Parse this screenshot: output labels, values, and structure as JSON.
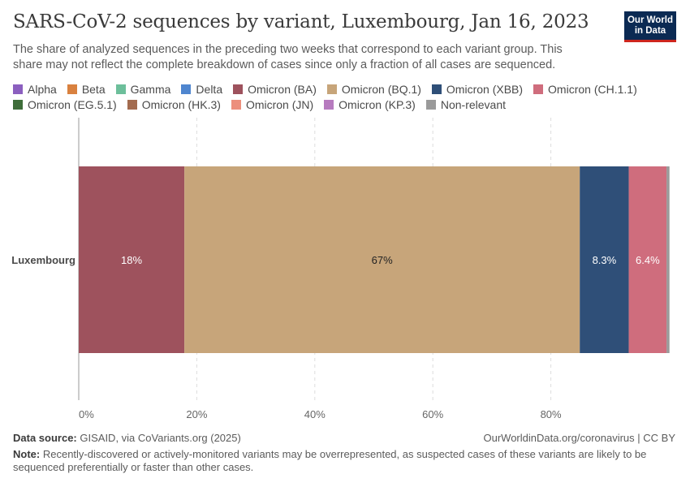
{
  "header": {
    "title": "SARS-CoV-2 sequences by variant, Luxembourg, Jan 16, 2023",
    "subtitle": "The share of analyzed sequences in the preceding two weeks that correspond to each variant group. This share may not reflect the complete breakdown of cases since only a fraction of all cases are sequenced.",
    "logo_line1": "Our World",
    "logo_line2": "in Data"
  },
  "legend": [
    {
      "label": "Alpha",
      "color": "#8b5fbf"
    },
    {
      "label": "Beta",
      "color": "#d9813f"
    },
    {
      "label": "Gamma",
      "color": "#6dbf9b"
    },
    {
      "label": "Delta",
      "color": "#4f86cf"
    },
    {
      "label": "Omicron (BA)",
      "color": "#9e525d"
    },
    {
      "label": "Omicron (BQ.1)",
      "color": "#c7a57a"
    },
    {
      "label": "Omicron (XBB)",
      "color": "#2f4f78"
    },
    {
      "label": "Omicron (CH.1.1)",
      "color": "#cf6d7d"
    },
    {
      "label": "Omicron (EG.5.1)",
      "color": "#3e6d3a"
    },
    {
      "label": "Omicron (HK.3)",
      "color": "#a36b4f"
    },
    {
      "label": "Omicron (JN)",
      "color": "#ec8f7d"
    },
    {
      "label": "Omicron (KP.3)",
      "color": "#b77bbf"
    },
    {
      "label": "Non-relevant",
      "color": "#9a9a9a"
    }
  ],
  "chart_data": {
    "type": "bar",
    "orientation": "horizontal",
    "stacked": true,
    "categories": [
      "Luxembourg"
    ],
    "xlim": [
      0,
      100
    ],
    "x_ticks": [
      "0%",
      "20%",
      "40%",
      "60%",
      "80%"
    ],
    "grid": true,
    "series": [
      {
        "name": "Omicron (BA)",
        "values": [
          17.9
        ],
        "label": "18%",
        "color": "#9e525d",
        "label_color": "#ffffff"
      },
      {
        "name": "Omicron (BQ.1)",
        "values": [
          67.0
        ],
        "label": "67%",
        "color": "#c7a57a",
        "label_color": "#222222"
      },
      {
        "name": "Omicron (XBB)",
        "values": [
          8.3
        ],
        "label": "8.3%",
        "color": "#2f4f78",
        "label_color": "#ffffff"
      },
      {
        "name": "Omicron (CH.1.1)",
        "values": [
          6.4
        ],
        "label": "6.4%",
        "color": "#cf6d7d",
        "label_color": "#ffffff"
      },
      {
        "name": "Non-relevant",
        "values": [
          0.5
        ],
        "label": "",
        "color": "#9a9a9a",
        "label_color": "#ffffff"
      }
    ]
  },
  "footer": {
    "source_label": "Data source:",
    "source": "GISAID, via CoVariants.org (2025)",
    "url": "OurWorldinData.org/coronavirus | CC BY",
    "note_label": "Note:",
    "note": "Recently-discovered or actively-monitored variants may be overrepresented, as suspected cases of these variants are likely to be sequenced preferentially or faster than other cases."
  }
}
